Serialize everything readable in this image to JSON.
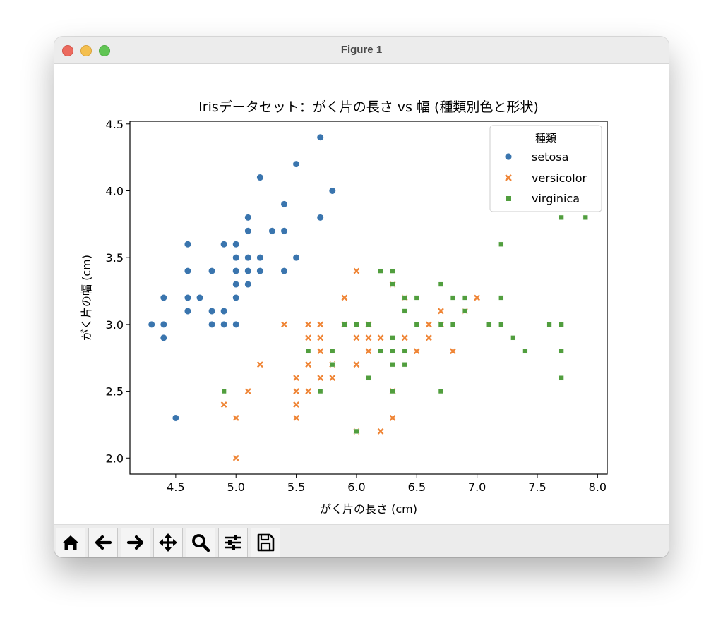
{
  "window": {
    "title": "Figure 1"
  },
  "toolbar": {
    "buttons": [
      {
        "name": "home-button",
        "icon": "home-icon"
      },
      {
        "name": "back-button",
        "icon": "arrow-left-icon"
      },
      {
        "name": "forward-button",
        "icon": "arrow-right-icon"
      },
      {
        "name": "pan-button",
        "icon": "move-icon"
      },
      {
        "name": "zoom-button",
        "icon": "magnifier-icon"
      },
      {
        "name": "configure-subplots-button",
        "icon": "sliders-icon"
      },
      {
        "name": "save-button",
        "icon": "floppy-disk-icon"
      }
    ]
  },
  "chart_data": {
    "type": "scatter",
    "title": "Irisデータセット：がく片の長さ vs 幅 (種類別色と形状)",
    "xlabel": "がく片の長さ (cm)",
    "ylabel": "がく片の幅 (cm)",
    "xlim": [
      4.12,
      8.08
    ],
    "ylim": [
      1.88,
      4.52
    ],
    "xticks": [
      "4.5",
      "5.0",
      "5.5",
      "6.0",
      "6.5",
      "7.0",
      "7.5",
      "8.0"
    ],
    "yticks": [
      "2.0",
      "2.5",
      "3.0",
      "3.5",
      "4.0",
      "4.5"
    ],
    "grid": false,
    "legend": {
      "title": "種類",
      "position": "top-right"
    },
    "series": [
      {
        "name": "setosa",
        "marker": "circle",
        "color": "#3a75ae",
        "points": [
          [
            5.1,
            3.5
          ],
          [
            4.9,
            3.0
          ],
          [
            4.7,
            3.2
          ],
          [
            4.6,
            3.1
          ],
          [
            5.0,
            3.6
          ],
          [
            5.4,
            3.9
          ],
          [
            4.6,
            3.4
          ],
          [
            5.0,
            3.4
          ],
          [
            4.4,
            2.9
          ],
          [
            4.9,
            3.1
          ],
          [
            5.4,
            3.7
          ],
          [
            4.8,
            3.4
          ],
          [
            4.8,
            3.0
          ],
          [
            4.3,
            3.0
          ],
          [
            5.8,
            4.0
          ],
          [
            5.7,
            4.4
          ],
          [
            5.1,
            3.8
          ],
          [
            5.7,
            3.8
          ],
          [
            5.4,
            3.4
          ],
          [
            5.1,
            3.7
          ],
          [
            4.6,
            3.6
          ],
          [
            5.1,
            3.3
          ],
          [
            5.0,
            3.0
          ],
          [
            5.2,
            3.5
          ],
          [
            5.2,
            3.4
          ],
          [
            4.8,
            3.1
          ],
          [
            5.2,
            4.1
          ],
          [
            5.5,
            4.2
          ],
          [
            5.0,
            3.2
          ],
          [
            5.5,
            3.5
          ],
          [
            4.4,
            3.0
          ],
          [
            5.1,
            3.4
          ],
          [
            5.0,
            3.5
          ],
          [
            4.5,
            2.3
          ],
          [
            4.4,
            3.2
          ],
          [
            4.8,
            3.0
          ],
          [
            5.3,
            3.7
          ],
          [
            4.6,
            3.2
          ],
          [
            4.9,
            3.6
          ],
          [
            5.0,
            3.3
          ]
        ]
      },
      {
        "name": "versicolor",
        "marker": "x",
        "color": "#ef8536",
        "points": [
          [
            7.0,
            3.2
          ],
          [
            6.4,
            3.2
          ],
          [
            6.9,
            3.1
          ],
          [
            5.5,
            2.3
          ],
          [
            6.5,
            2.8
          ],
          [
            5.7,
            2.8
          ],
          [
            6.3,
            3.3
          ],
          [
            4.9,
            2.4
          ],
          [
            6.6,
            2.9
          ],
          [
            5.2,
            2.7
          ],
          [
            5.0,
            2.0
          ],
          [
            5.9,
            3.0
          ],
          [
            6.0,
            2.2
          ],
          [
            6.1,
            2.9
          ],
          [
            5.6,
            2.9
          ],
          [
            6.7,
            3.1
          ],
          [
            5.6,
            3.0
          ],
          [
            5.8,
            2.7
          ],
          [
            6.2,
            2.2
          ],
          [
            5.6,
            2.5
          ],
          [
            5.9,
            3.2
          ],
          [
            6.1,
            2.8
          ],
          [
            6.3,
            2.5
          ],
          [
            6.4,
            2.9
          ],
          [
            6.6,
            3.0
          ],
          [
            6.8,
            2.8
          ],
          [
            6.7,
            3.0
          ],
          [
            6.0,
            2.9
          ],
          [
            5.7,
            2.6
          ],
          [
            5.5,
            2.4
          ],
          [
            5.8,
            2.7
          ],
          [
            6.0,
            2.7
          ],
          [
            5.4,
            3.0
          ],
          [
            6.0,
            3.4
          ],
          [
            6.3,
            2.3
          ],
          [
            5.5,
            2.5
          ],
          [
            5.5,
            2.6
          ],
          [
            6.1,
            3.0
          ],
          [
            5.8,
            2.6
          ],
          [
            5.0,
            2.3
          ],
          [
            5.6,
            2.7
          ],
          [
            5.7,
            3.0
          ],
          [
            6.2,
            2.9
          ],
          [
            5.1,
            2.5
          ],
          [
            5.7,
            2.9
          ]
        ]
      },
      {
        "name": "virginica",
        "marker": "square",
        "color": "#519e3e",
        "points": [
          [
            6.3,
            3.3
          ],
          [
            5.8,
            2.7
          ],
          [
            7.1,
            3.0
          ],
          [
            6.3,
            2.9
          ],
          [
            6.5,
            3.0
          ],
          [
            7.6,
            3.0
          ],
          [
            4.9,
            2.5
          ],
          [
            7.3,
            2.9
          ],
          [
            6.7,
            2.5
          ],
          [
            7.2,
            3.6
          ],
          [
            6.5,
            3.2
          ],
          [
            6.4,
            2.7
          ],
          [
            6.8,
            3.0
          ],
          [
            5.7,
            2.5
          ],
          [
            5.8,
            2.8
          ],
          [
            6.4,
            3.2
          ],
          [
            6.5,
            3.0
          ],
          [
            7.7,
            3.8
          ],
          [
            7.7,
            2.6
          ],
          [
            6.0,
            2.2
          ],
          [
            6.9,
            3.2
          ],
          [
            5.6,
            2.8
          ],
          [
            7.7,
            2.8
          ],
          [
            6.3,
            2.7
          ],
          [
            6.7,
            3.3
          ],
          [
            7.2,
            3.2
          ],
          [
            6.2,
            2.8
          ],
          [
            6.1,
            3.0
          ],
          [
            6.4,
            2.8
          ],
          [
            7.2,
            3.0
          ],
          [
            7.4,
            2.8
          ],
          [
            7.9,
            3.8
          ],
          [
            6.3,
            2.8
          ],
          [
            6.1,
            2.6
          ],
          [
            7.7,
            3.0
          ],
          [
            6.3,
            3.4
          ],
          [
            6.4,
            3.1
          ],
          [
            6.0,
            3.0
          ],
          [
            6.9,
            3.1
          ],
          [
            6.8,
            3.2
          ],
          [
            6.7,
            3.0
          ],
          [
            6.2,
            3.4
          ],
          [
            5.9,
            3.0
          ],
          [
            6.3,
            2.5
          ]
        ]
      }
    ]
  }
}
